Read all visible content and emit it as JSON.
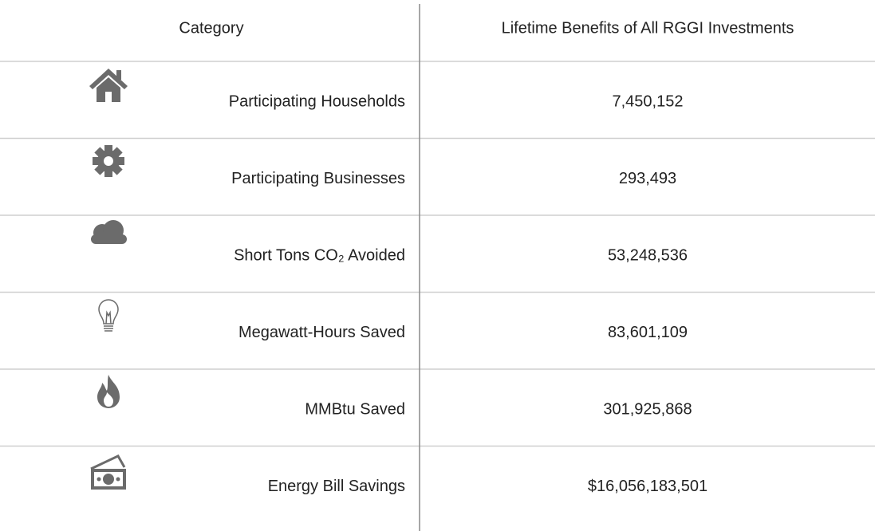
{
  "table": {
    "header": [
      "Category",
      "Lifetime Benefits of All RGGI Investments"
    ],
    "rows": [
      [
        "Participating Households",
        "7,450,152"
      ],
      [
        "Participating Businesses",
        "293,493"
      ],
      [
        "Short Tons CO₂ Avoided",
        "53,248,536"
      ],
      [
        "Megawatt-Hours Saved",
        "83,601,109"
      ],
      [
        "MMBtu Saved",
        "301,925,868"
      ],
      [
        "Energy Bill Savings",
        "$16,056,183,501"
      ]
    ]
  }
}
